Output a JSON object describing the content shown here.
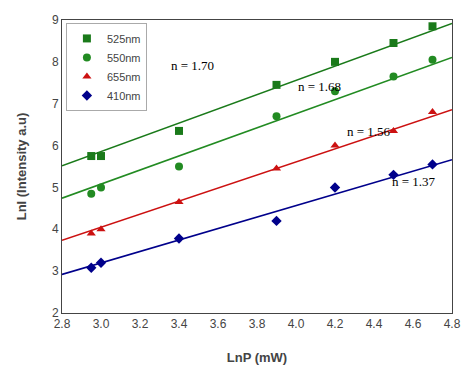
{
  "chart_data": {
    "type": "scatter",
    "x_label": "LnP (mW)",
    "y_label": "LnI (Intensity a.u)",
    "xlim": [
      2.8,
      4.8
    ],
    "ylim": [
      2,
      9
    ],
    "xticks": [
      2.8,
      {
        "value": 3.0,
        "label": "3.0"
      },
      3.2,
      3.4,
      3.6,
      3.8,
      {
        "value": 4.0,
        "label": "4.0"
      },
      4.2,
      4.4,
      4.6,
      4.8
    ],
    "yticks": [
      2,
      3,
      4,
      5,
      6,
      7,
      8,
      9
    ],
    "grid": false,
    "legend": "upper left",
    "series": [
      {
        "name": "525nm",
        "color": "#1a7a1a",
        "marker": "square",
        "x": [
          2.95,
          3.0,
          3.4,
          3.9,
          4.2,
          4.5,
          4.7
        ],
        "values": [
          5.75,
          5.75,
          6.35,
          7.45,
          8.0,
          8.45,
          8.85
        ],
        "fit_x": [
          2.8,
          4.8
        ],
        "fit_values": [
          5.516428571,
          8.916428571
        ]
      },
      {
        "name": "550nm",
        "color": "#228B22",
        "marker": "circle",
        "x": [
          2.95,
          3.0,
          3.4,
          3.9,
          4.2,
          4.5,
          4.7
        ],
        "values": [
          4.85,
          5.0,
          5.5,
          6.7,
          7.3,
          7.65,
          8.05
        ],
        "fit_x": [
          2.8,
          4.8
        ],
        "fit_values": [
          4.743714286,
          8.103714286
        ]
      },
      {
        "name": "655nm",
        "color": "#cc1111",
        "marker": "triangle-up",
        "x": [
          2.95,
          3.0,
          3.4,
          3.9,
          4.2,
          4.5,
          4.7
        ],
        "values": [
          3.9,
          4.0,
          4.65,
          5.45,
          6.0,
          6.35,
          6.8
        ],
        "fit_x": [
          2.8,
          4.8
        ],
        "fit_values": [
          3.736,
          6.856
        ]
      },
      {
        "name": "410nm",
        "color": "#00008B",
        "marker": "diamond",
        "x": [
          2.95,
          3.0,
          3.4,
          3.9,
          4.2,
          4.5,
          4.7
        ],
        "values": [
          3.08,
          3.2,
          3.78,
          4.2,
          5.0,
          5.3,
          5.55
        ],
        "fit_x": [
          2.8,
          4.8
        ],
        "fit_values": [
          2.921642857,
          5.661642857
        ]
      }
    ],
    "annotations": [
      {
        "text": "n = 1.70",
        "x": 3.35,
        "y": 7.68
      },
      {
        "text": "n = 1.68",
        "x": 4.0,
        "y": 7.18
      },
      {
        "text": "n = 1.56",
        "x": 4.25,
        "y": 6.1
      },
      {
        "text": "n = 1.37",
        "x": 4.48,
        "y": 4.92
      }
    ]
  }
}
